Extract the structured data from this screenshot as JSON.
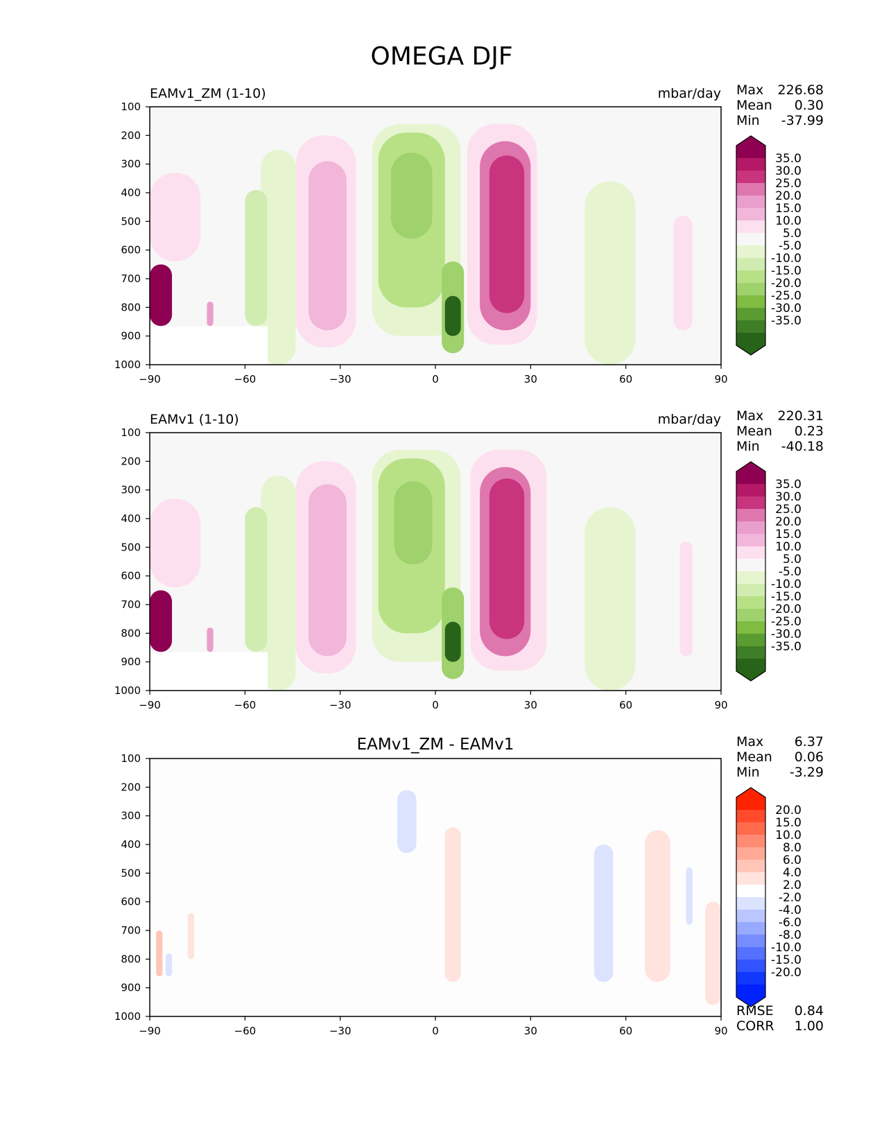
{
  "figure_title": "OMEGA DJF",
  "chart_data": [
    {
      "type": "contour",
      "title_left": "EAMv1_ZM (1-10)",
      "title_right": "mbar/day",
      "xlim": [
        -90,
        90
      ],
      "ylim": [
        1000,
        100
      ],
      "xticks": [
        "−90",
        "−60",
        "−30",
        "0",
        "30",
        "60",
        "90"
      ],
      "yticks": [
        "100",
        "200",
        "300",
        "400",
        "500",
        "600",
        "700",
        "800",
        "900",
        "1000"
      ],
      "stats": [
        {
          "label": "Max",
          "value": "226.68"
        },
        {
          "label": "Mean",
          "value": "0.30"
        },
        {
          "label": "Min",
          "value": "-37.99"
        }
      ],
      "colorbar_labels": [
        "35.0",
        "30.0",
        "25.0",
        "20.0",
        "15.0",
        "10.0",
        "5.0",
        "-5.0",
        "-10.0",
        "-15.0",
        "-20.0",
        "-25.0",
        "-30.0",
        "-35.0"
      ],
      "colorbar_colors": [
        "#8e0152",
        "#b41866",
        "#c9347e",
        "#de77ae",
        "#ea9ecb",
        "#f1b6da",
        "#fde0ef",
        "#f7f7f7",
        "#e6f5d0",
        "#d0ecb0",
        "#b8e186",
        "#9fd16d",
        "#7fbc41",
        "#5b9c32",
        "#3e7e26",
        "#276419"
      ],
      "features": [
        {
          "lat_min": -90,
          "lat_max": -83,
          "p_top": 650,
          "p_bottom": 865,
          "value": 40
        },
        {
          "lat_min": -72,
          "lat_max": -70,
          "p_top": 780,
          "p_bottom": 865,
          "value": 20
        },
        {
          "lat_min": -90,
          "lat_max": -74,
          "p_top": 330,
          "p_bottom": 640,
          "value": 7
        },
        {
          "lat_min": -55,
          "lat_max": -44,
          "p_top": 250,
          "p_bottom": 1000,
          "value": -7
        },
        {
          "lat_min": -60,
          "lat_max": -53,
          "p_top": 390,
          "p_bottom": 865,
          "value": -12
        },
        {
          "lat_min": -44,
          "lat_max": -25,
          "p_top": 200,
          "p_bottom": 940,
          "value": 8
        },
        {
          "lat_min": -40,
          "lat_max": -28,
          "p_top": 290,
          "p_bottom": 880,
          "value": 14
        },
        {
          "lat_min": -20,
          "lat_max": 8,
          "p_top": 160,
          "p_bottom": 900,
          "value": -8
        },
        {
          "lat_min": -18,
          "lat_max": 3,
          "p_top": 190,
          "p_bottom": 800,
          "value": -15
        },
        {
          "lat_min": -14,
          "lat_max": -1,
          "p_top": 260,
          "p_bottom": 560,
          "value": -23
        },
        {
          "lat_min": 2,
          "lat_max": 9,
          "p_top": 640,
          "p_bottom": 960,
          "value": -24
        },
        {
          "lat_min": 3,
          "lat_max": 8,
          "p_top": 760,
          "p_bottom": 900,
          "value": -35
        },
        {
          "lat_min": 10,
          "lat_max": 32,
          "p_top": 160,
          "p_bottom": 930,
          "value": 10
        },
        {
          "lat_min": 14,
          "lat_max": 30,
          "p_top": 220,
          "p_bottom": 880,
          "value": 22
        },
        {
          "lat_min": 17,
          "lat_max": 28,
          "p_top": 270,
          "p_bottom": 820,
          "value": 26
        },
        {
          "lat_min": 47,
          "lat_max": 63,
          "p_top": 360,
          "p_bottom": 1000,
          "value": -7
        },
        {
          "lat_min": 75,
          "lat_max": 81,
          "p_top": 480,
          "p_bottom": 880,
          "value": 7
        }
      ]
    },
    {
      "type": "contour",
      "title_left": "EAMv1 (1-10)",
      "title_right": "mbar/day",
      "xlim": [
        -90,
        90
      ],
      "ylim": [
        1000,
        100
      ],
      "xticks": [
        "−90",
        "−60",
        "−30",
        "0",
        "30",
        "60",
        "90"
      ],
      "yticks": [
        "100",
        "200",
        "300",
        "400",
        "500",
        "600",
        "700",
        "800",
        "900",
        "1000"
      ],
      "stats": [
        {
          "label": "Max",
          "value": "220.31"
        },
        {
          "label": "Mean",
          "value": "0.23"
        },
        {
          "label": "Min",
          "value": "-40.18"
        }
      ],
      "colorbar_labels": [
        "35.0",
        "30.0",
        "25.0",
        "20.0",
        "15.0",
        "10.0",
        "5.0",
        "-5.0",
        "-10.0",
        "-15.0",
        "-20.0",
        "-25.0",
        "-30.0",
        "-35.0"
      ],
      "colorbar_colors": [
        "#8e0152",
        "#b41866",
        "#c9347e",
        "#de77ae",
        "#ea9ecb",
        "#f1b6da",
        "#fde0ef",
        "#f7f7f7",
        "#e6f5d0",
        "#d0ecb0",
        "#b8e186",
        "#9fd16d",
        "#7fbc41",
        "#5b9c32",
        "#3e7e26",
        "#276419"
      ],
      "features": [
        {
          "lat_min": -90,
          "lat_max": -83,
          "p_top": 650,
          "p_bottom": 865,
          "value": 40
        },
        {
          "lat_min": -72,
          "lat_max": -70,
          "p_top": 780,
          "p_bottom": 865,
          "value": 20
        },
        {
          "lat_min": -90,
          "lat_max": -74,
          "p_top": 330,
          "p_bottom": 640,
          "value": 7
        },
        {
          "lat_min": -55,
          "lat_max": -44,
          "p_top": 250,
          "p_bottom": 1000,
          "value": -7
        },
        {
          "lat_min": -60,
          "lat_max": -53,
          "p_top": 360,
          "p_bottom": 865,
          "value": -12
        },
        {
          "lat_min": -44,
          "lat_max": -25,
          "p_top": 200,
          "p_bottom": 940,
          "value": 8
        },
        {
          "lat_min": -40,
          "lat_max": -28,
          "p_top": 280,
          "p_bottom": 880,
          "value": 14
        },
        {
          "lat_min": -20,
          "lat_max": 8,
          "p_top": 160,
          "p_bottom": 900,
          "value": -8
        },
        {
          "lat_min": -18,
          "lat_max": 3,
          "p_top": 190,
          "p_bottom": 800,
          "value": -15
        },
        {
          "lat_min": -13,
          "lat_max": -1,
          "p_top": 270,
          "p_bottom": 560,
          "value": -22
        },
        {
          "lat_min": 2,
          "lat_max": 9,
          "p_top": 640,
          "p_bottom": 960,
          "value": -24
        },
        {
          "lat_min": 3,
          "lat_max": 8,
          "p_top": 760,
          "p_bottom": 900,
          "value": -36
        },
        {
          "lat_min": 11,
          "lat_max": 35,
          "p_top": 160,
          "p_bottom": 930,
          "value": 10
        },
        {
          "lat_min": 14,
          "lat_max": 30,
          "p_top": 220,
          "p_bottom": 880,
          "value": 22
        },
        {
          "lat_min": 17,
          "lat_max": 28,
          "p_top": 260,
          "p_bottom": 820,
          "value": 26
        },
        {
          "lat_min": 47,
          "lat_max": 63,
          "p_top": 360,
          "p_bottom": 1000,
          "value": -7
        },
        {
          "lat_min": 77,
          "lat_max": 81,
          "p_top": 480,
          "p_bottom": 880,
          "value": 7
        }
      ]
    },
    {
      "type": "contour",
      "title_center": "EAMv1_ZM - EAMv1",
      "xlim": [
        -90,
        90
      ],
      "ylim": [
        1000,
        100
      ],
      "xticks": [
        "−90",
        "−60",
        "−30",
        "0",
        "30",
        "60",
        "90"
      ],
      "yticks": [
        "100",
        "200",
        "300",
        "400",
        "500",
        "600",
        "700",
        "800",
        "900",
        "1000"
      ],
      "stats": [
        {
          "label": "Max",
          "value": "6.37"
        },
        {
          "label": "Mean",
          "value": "0.06"
        },
        {
          "label": "Min",
          "value": "-3.29"
        }
      ],
      "extra_stats": [
        {
          "label": "RMSE",
          "value": "0.84"
        },
        {
          "label": "CORR",
          "value": "1.00"
        }
      ],
      "colorbar_labels": [
        "20.0",
        "15.0",
        "10.0",
        "8.0",
        "6.0",
        "4.0",
        "2.0",
        "-2.0",
        "-4.0",
        "-6.0",
        "-8.0",
        "-10.0",
        "-15.0",
        "-20.0"
      ],
      "colorbar_colors": [
        "#ff2200",
        "#ff4a2b",
        "#ff6a4d",
        "#ff8b73",
        "#ffa996",
        "#ffc6b8",
        "#ffe3dc",
        "#ffffff",
        "#dce3ff",
        "#bac6ff",
        "#98aaff",
        "#768dff",
        "#5471ff",
        "#3254ff",
        "#1038ff",
        "#0022ff"
      ],
      "features": [
        {
          "lat_min": -12,
          "lat_max": -6,
          "p_top": 210,
          "p_bottom": 430,
          "value": -3
        },
        {
          "lat_min": 3,
          "lat_max": 8,
          "p_top": 340,
          "p_bottom": 880,
          "value": 3
        },
        {
          "lat_min": 50,
          "lat_max": 56,
          "p_top": 400,
          "p_bottom": 880,
          "value": -3
        },
        {
          "lat_min": 66,
          "lat_max": 74,
          "p_top": 350,
          "p_bottom": 880,
          "value": 3
        },
        {
          "lat_min": 79,
          "lat_max": 81,
          "p_top": 480,
          "p_bottom": 680,
          "value": -3
        },
        {
          "lat_min": 85,
          "lat_max": 90,
          "p_top": 600,
          "p_bottom": 960,
          "value": 3
        },
        {
          "lat_min": -88,
          "lat_max": -86,
          "p_top": 700,
          "p_bottom": 860,
          "value": 5
        },
        {
          "lat_min": -85,
          "lat_max": -83,
          "p_top": 780,
          "p_bottom": 860,
          "value": -3
        },
        {
          "lat_min": -78,
          "lat_max": -76,
          "p_top": 640,
          "p_bottom": 800,
          "value": 3
        }
      ]
    }
  ]
}
